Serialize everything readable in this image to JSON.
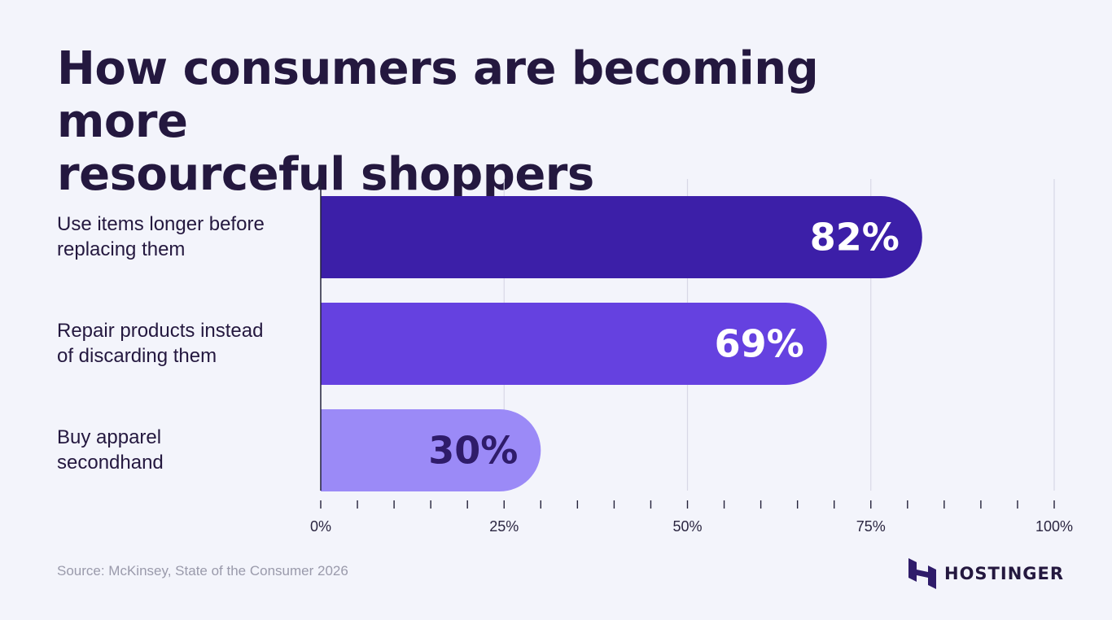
{
  "title_lines": [
    "How consumers are becoming more",
    "resourceful shoppers"
  ],
  "source": "Source: McKinsey, State of the Consumer 2026",
  "brand": {
    "name": "HOSTINGER",
    "icon": "hostinger-logo-icon",
    "color": "#2f1c6a"
  },
  "colors": {
    "background": "#f3f4fb",
    "grid": "#d8d8e6",
    "axis": "#23213a",
    "tick_label": "#2a2540"
  },
  "chart_data": {
    "type": "bar",
    "orientation": "horizontal",
    "title": "How consumers are becoming more resourceful shoppers",
    "categories": [
      [
        "Use items longer before",
        "replacing them"
      ],
      [
        "Repair products instead",
        "of discarding them"
      ],
      [
        "Buy apparel",
        "secondhand"
      ]
    ],
    "values": [
      82,
      69,
      30
    ],
    "value_labels": [
      "82%",
      "69%",
      "30%"
    ],
    "bar_colors": [
      "#3c1fa8",
      "#6541e0",
      "#9b8af7"
    ],
    "value_label_colors": [
      "#ffffff",
      "#ffffff",
      "#2f1c6a"
    ],
    "xlim": [
      0,
      100
    ],
    "major_ticks": [
      0,
      25,
      50,
      75,
      100
    ],
    "x_tick_labels": [
      "0%",
      "25%",
      "50%",
      "75%",
      "100%"
    ],
    "minor_tick_step": 5,
    "grid": true
  }
}
